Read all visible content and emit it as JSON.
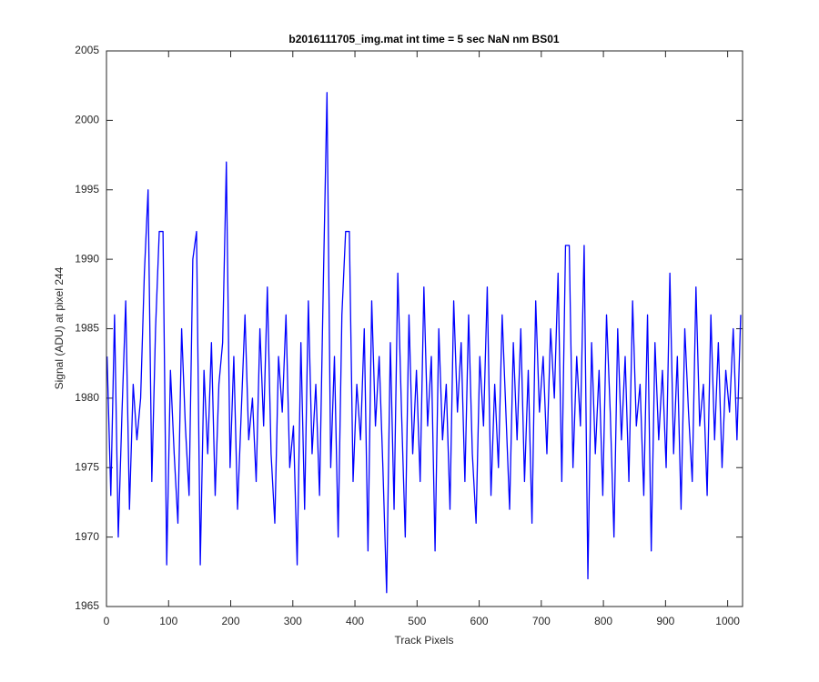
{
  "chart_data": {
    "type": "line",
    "title": "b2016111705_img.mat int time = 5 sec  NaN nm BS01",
    "x_label": "Track Pixels",
    "y_label": "Signal (ADU) at pixel 244",
    "color": "#0000ff",
    "x": [
      1,
      7,
      13,
      19,
      25,
      31,
      37,
      43,
      49,
      55,
      61,
      67,
      73,
      79,
      85,
      91,
      97,
      103,
      109,
      115,
      121,
      127,
      133,
      139,
      145,
      151,
      157,
      163,
      169,
      175,
      181,
      187,
      193,
      199,
      205,
      211,
      217,
      223,
      229,
      235,
      241,
      247,
      253,
      259,
      265,
      271,
      277,
      283,
      289,
      295,
      301,
      307,
      313,
      319,
      325,
      331,
      337,
      343,
      349,
      355,
      361,
      367,
      373,
      379,
      385,
      391,
      397,
      403,
      409,
      415,
      421,
      427,
      433,
      439,
      445,
      451,
      457,
      463,
      469,
      475,
      481,
      487,
      493,
      499,
      505,
      511,
      517,
      523,
      529,
      535,
      541,
      547,
      553,
      559,
      565,
      571,
      577,
      583,
      589,
      595,
      601,
      607,
      613,
      619,
      625,
      631,
      637,
      643,
      649,
      655,
      661,
      667,
      673,
      679,
      685,
      691,
      697,
      703,
      709,
      715,
      721,
      727,
      733,
      739,
      745,
      751,
      757,
      763,
      769,
      775,
      781,
      787,
      793,
      799,
      805,
      811,
      817,
      823,
      829,
      835,
      841,
      847,
      853,
      859,
      865,
      871,
      877,
      883,
      889,
      895,
      901,
      907,
      913,
      919,
      925,
      931,
      937,
      943,
      949,
      955,
      961,
      967,
      973,
      979,
      985,
      991,
      997,
      1003,
      1009,
      1015,
      1021
    ],
    "values": [
      1983,
      1973,
      1986,
      1970,
      1979,
      1987,
      1972,
      1981,
      1977,
      1980,
      1989,
      1995,
      1974,
      1985,
      1992,
      1992,
      1968,
      1982,
      1976,
      1971,
      1985,
      1978,
      1973,
      1990,
      1992,
      1968,
      1982,
      1976,
      1984,
      1973,
      1981,
      1984,
      1997,
      1975,
      1983,
      1972,
      1979,
      1986,
      1977,
      1980,
      1974,
      1985,
      1978,
      1988,
      1976,
      1971,
      1983,
      1979,
      1986,
      1975,
      1978,
      1968,
      1984,
      1972,
      1987,
      1976,
      1981,
      1973,
      1988,
      2002,
      1975,
      1983,
      1970,
      1986,
      1992,
      1992,
      1974,
      1981,
      1977,
      1985,
      1969,
      1987,
      1978,
      1983,
      1975,
      1966,
      1984,
      1972,
      1989,
      1979,
      1970,
      1986,
      1976,
      1982,
      1974,
      1988,
      1978,
      1983,
      1969,
      1985,
      1977,
      1981,
      1972,
      1987,
      1979,
      1984,
      1974,
      1986,
      1976,
      1971,
      1983,
      1978,
      1988,
      1973,
      1981,
      1975,
      1986,
      1979,
      1972,
      1984,
      1977,
      1985,
      1974,
      1982,
      1971,
      1987,
      1979,
      1983,
      1976,
      1985,
      1980,
      1989,
      1974,
      1991,
      1991,
      1975,
      1983,
      1978,
      1991,
      1967,
      1984,
      1976,
      1982,
      1973,
      1986,
      1979,
      1970,
      1985,
      1977,
      1983,
      1974,
      1987,
      1978,
      1981,
      1973,
      1986,
      1969,
      1984,
      1977,
      1982,
      1975,
      1989,
      1976,
      1983,
      1972,
      1985,
      1979,
      1974,
      1988,
      1978,
      1981,
      1973,
      1986,
      1977,
      1984,
      1975,
      1982,
      1979,
      1985,
      1977,
      1986
    ],
    "xlim": [
      0,
      1024
    ],
    "ylim": [
      1965,
      2005
    ],
    "xticks": [
      0,
      100,
      200,
      300,
      400,
      500,
      600,
      700,
      800,
      900,
      1000
    ],
    "yticks": [
      1965,
      1970,
      1975,
      1980,
      1985,
      1990,
      1995,
      2000,
      2005
    ]
  }
}
